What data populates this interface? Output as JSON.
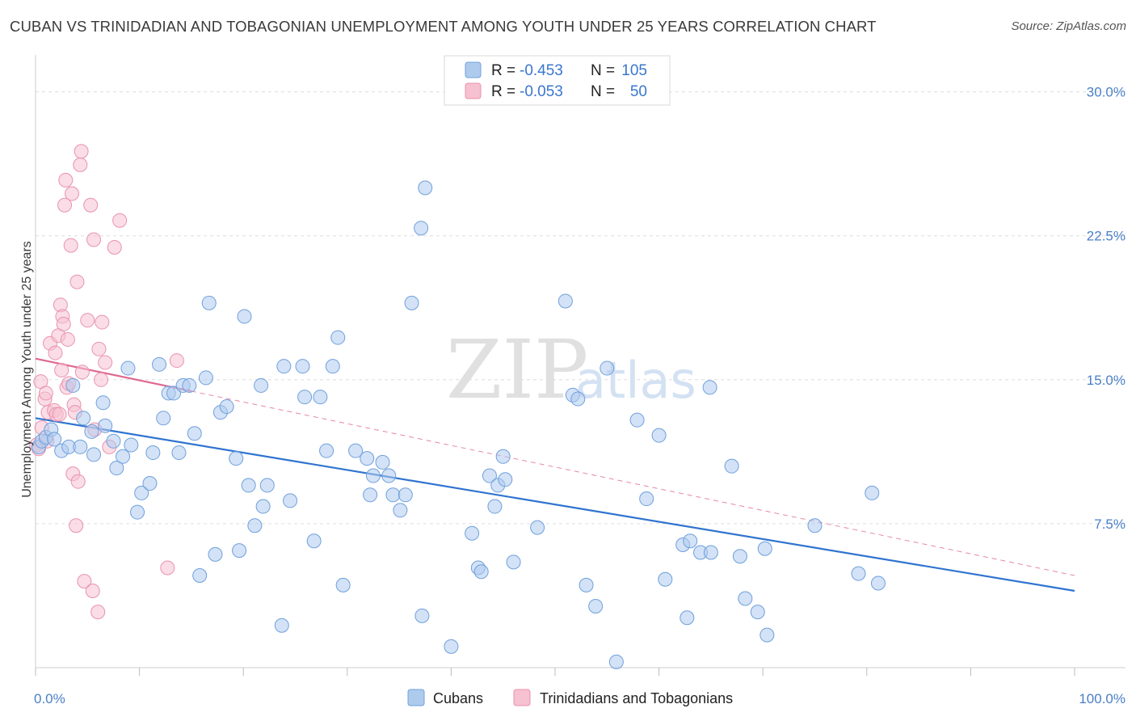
{
  "title": "CUBAN VS TRINIDADIAN AND TOBAGONIAN UNEMPLOYMENT AMONG YOUTH UNDER 25 YEARS CORRELATION CHART",
  "source": "Source: ZipAtlas.com",
  "watermark": {
    "zip": "ZIP",
    "atlas": "atlas"
  },
  "legend": {
    "r_label": "R =",
    "n_label": "N =",
    "rows": [
      {
        "r": "-0.453",
        "n": "105"
      },
      {
        "r": "-0.053",
        "n": "50"
      }
    ]
  },
  "bottom_legend": [
    "Cubans",
    "Trinidadians and Tobagonians"
  ],
  "colors": {
    "cubans_fill": "#aecbee",
    "cubans_stroke": "#6fa0dc",
    "cubans_line": "#2f74d0",
    "tt_fill": "#f6c1d1",
    "tt_stroke": "#e993ae",
    "tt_line": "#e06891",
    "tick_text": "#4a7fc8"
  },
  "chart_data": {
    "type": "scatter",
    "title": "CUBAN VS TRINIDADIAN AND TOBAGONIAN UNEMPLOYMENT AMONG YOUTH UNDER 25 YEARS CORRELATION CHART",
    "xlabel": "",
    "ylabel": "Unemployment Among Youth under 25 years",
    "xlim": [
      0,
      100
    ],
    "ylim": [
      0,
      31.5
    ],
    "x_tick_labels": [
      "0.0%",
      "100.0%"
    ],
    "y_ticks": [
      {
        "value": 7.5,
        "label": "7.5%"
      },
      {
        "value": 15.0,
        "label": "15.0%"
      },
      {
        "value": 22.5,
        "label": "22.5%"
      },
      {
        "value": 30.0,
        "label": "30.0%"
      }
    ],
    "grid": "horizontal dashed",
    "legend_position": "top-center",
    "series": [
      {
        "name": "Cubans",
        "points": [
          [
            0.3,
            11.5
          ],
          [
            0.6,
            11.8
          ],
          [
            1.0,
            12.0
          ],
          [
            1.5,
            12.4
          ],
          [
            1.8,
            11.9
          ],
          [
            2.5,
            11.3
          ],
          [
            3.2,
            11.5
          ],
          [
            3.6,
            14.7
          ],
          [
            4.3,
            11.5
          ],
          [
            4.6,
            13.0
          ],
          [
            5.4,
            12.3
          ],
          [
            5.6,
            11.1
          ],
          [
            6.5,
            13.8
          ],
          [
            6.7,
            12.6
          ],
          [
            7.5,
            11.8
          ],
          [
            7.8,
            10.4
          ],
          [
            8.4,
            11.0
          ],
          [
            8.9,
            15.6
          ],
          [
            9.2,
            11.6
          ],
          [
            9.8,
            8.1
          ],
          [
            10.2,
            9.1
          ],
          [
            11.0,
            9.6
          ],
          [
            11.3,
            11.2
          ],
          [
            11.9,
            15.8
          ],
          [
            12.3,
            13.0
          ],
          [
            12.8,
            14.3
          ],
          [
            13.3,
            14.3
          ],
          [
            13.8,
            11.2
          ],
          [
            14.2,
            14.7
          ],
          [
            14.8,
            14.7
          ],
          [
            15.3,
            12.2
          ],
          [
            15.8,
            4.8
          ],
          [
            16.4,
            15.1
          ],
          [
            16.7,
            19.0
          ],
          [
            17.3,
            5.9
          ],
          [
            17.8,
            13.3
          ],
          [
            18.4,
            13.6
          ],
          [
            19.3,
            10.9
          ],
          [
            19.6,
            6.1
          ],
          [
            20.1,
            18.3
          ],
          [
            20.5,
            9.5
          ],
          [
            21.1,
            7.4
          ],
          [
            21.7,
            14.7
          ],
          [
            21.9,
            8.4
          ],
          [
            22.3,
            9.5
          ],
          [
            23.7,
            2.2
          ],
          [
            23.9,
            15.7
          ],
          [
            24.5,
            8.7
          ],
          [
            25.7,
            15.7
          ],
          [
            25.9,
            14.1
          ],
          [
            26.8,
            6.6
          ],
          [
            27.4,
            14.1
          ],
          [
            28.0,
            11.3
          ],
          [
            28.6,
            15.7
          ],
          [
            29.1,
            17.2
          ],
          [
            29.6,
            4.3
          ],
          [
            30.8,
            11.3
          ],
          [
            31.9,
            10.9
          ],
          [
            32.2,
            9.0
          ],
          [
            32.5,
            10.0
          ],
          [
            33.4,
            10.7
          ],
          [
            34.0,
            10.0
          ],
          [
            34.4,
            9.0
          ],
          [
            35.1,
            8.2
          ],
          [
            35.6,
            9.0
          ],
          [
            36.2,
            19.0
          ],
          [
            37.1,
            22.9
          ],
          [
            37.2,
            2.7
          ],
          [
            37.5,
            25.0
          ],
          [
            40.0,
            1.1
          ],
          [
            42.0,
            7.0
          ],
          [
            42.6,
            5.2
          ],
          [
            42.9,
            5.0
          ],
          [
            43.7,
            10.0
          ],
          [
            44.2,
            8.4
          ],
          [
            44.5,
            9.5
          ],
          [
            45.0,
            11.0
          ],
          [
            45.2,
            9.8
          ],
          [
            46.0,
            5.5
          ],
          [
            48.3,
            7.3
          ],
          [
            51.0,
            19.1
          ],
          [
            51.7,
            14.2
          ],
          [
            52.2,
            14.0
          ],
          [
            53.0,
            4.3
          ],
          [
            53.9,
            3.2
          ],
          [
            55.0,
            15.6
          ],
          [
            55.9,
            0.3
          ],
          [
            57.9,
            12.9
          ],
          [
            58.8,
            8.8
          ],
          [
            60.0,
            12.1
          ],
          [
            60.6,
            4.6
          ],
          [
            62.3,
            6.4
          ],
          [
            62.7,
            2.6
          ],
          [
            63.0,
            6.6
          ],
          [
            64.0,
            6.0
          ],
          [
            64.9,
            14.6
          ],
          [
            65.0,
            6.0
          ],
          [
            67.0,
            10.5
          ],
          [
            67.8,
            5.8
          ],
          [
            68.3,
            3.6
          ],
          [
            69.5,
            2.9
          ],
          [
            70.2,
            6.2
          ],
          [
            70.4,
            1.7
          ],
          [
            75.0,
            7.4
          ],
          [
            79.2,
            4.9
          ],
          [
            80.5,
            9.1
          ],
          [
            81.1,
            4.4
          ]
        ],
        "trend": {
          "x": [
            0,
            100
          ],
          "y": [
            13.0,
            4.0
          ],
          "style": "solid"
        }
      },
      {
        "name": "Trinidadians and Tobagonians",
        "points": [
          [
            0.1,
            11.6
          ],
          [
            0.3,
            11.4
          ],
          [
            0.5,
            14.9
          ],
          [
            0.6,
            12.5
          ],
          [
            0.9,
            14.0
          ],
          [
            1.0,
            14.3
          ],
          [
            1.1,
            11.8
          ],
          [
            1.2,
            13.3
          ],
          [
            1.4,
            16.9
          ],
          [
            1.8,
            13.4
          ],
          [
            1.9,
            16.4
          ],
          [
            2.0,
            13.2
          ],
          [
            2.2,
            17.3
          ],
          [
            2.3,
            13.2
          ],
          [
            2.4,
            18.9
          ],
          [
            2.5,
            15.5
          ],
          [
            2.6,
            18.3
          ],
          [
            2.7,
            17.9
          ],
          [
            2.8,
            24.1
          ],
          [
            2.9,
            25.4
          ],
          [
            3.0,
            14.6
          ],
          [
            3.1,
            17.1
          ],
          [
            3.2,
            14.8
          ],
          [
            3.4,
            22.0
          ],
          [
            3.5,
            24.7
          ],
          [
            3.6,
            10.1
          ],
          [
            3.7,
            13.7
          ],
          [
            3.8,
            13.3
          ],
          [
            3.9,
            7.4
          ],
          [
            4.0,
            20.1
          ],
          [
            4.1,
            9.7
          ],
          [
            4.3,
            26.2
          ],
          [
            4.4,
            26.9
          ],
          [
            4.5,
            15.4
          ],
          [
            4.7,
            4.5
          ],
          [
            5.0,
            18.1
          ],
          [
            5.3,
            24.1
          ],
          [
            5.5,
            4.0
          ],
          [
            5.6,
            22.3
          ],
          [
            5.7,
            12.4
          ],
          [
            6.0,
            2.9
          ],
          [
            6.1,
            16.6
          ],
          [
            6.3,
            15.0
          ],
          [
            6.4,
            18.0
          ],
          [
            6.7,
            15.9
          ],
          [
            7.1,
            11.5
          ],
          [
            7.6,
            21.9
          ],
          [
            8.1,
            23.3
          ],
          [
            12.7,
            5.2
          ],
          [
            13.6,
            16.0
          ]
        ],
        "trend": {
          "x": [
            0,
            100
          ],
          "y": [
            16.1,
            4.8
          ],
          "solid_until_x": 15
        }
      }
    ]
  }
}
